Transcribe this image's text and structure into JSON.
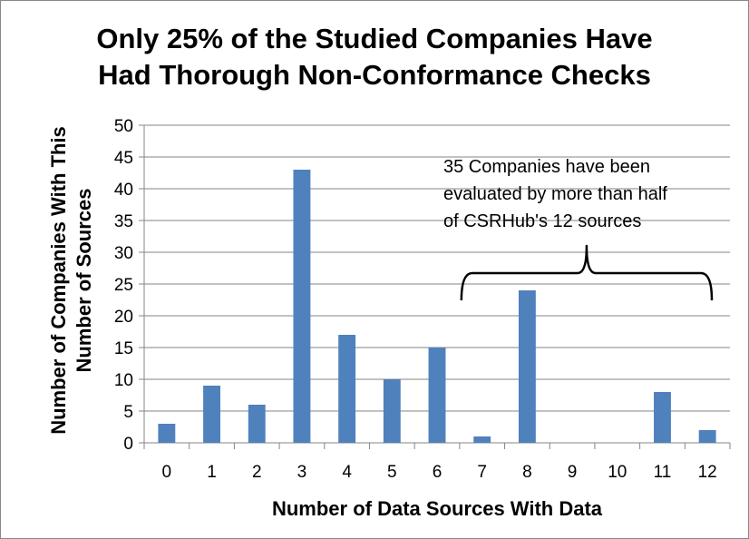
{
  "chart_data": {
    "type": "bar",
    "title_lines": [
      "Only 25% of the Studied Companies Have",
      "Had Thorough Non-Conformance Checks"
    ],
    "xlabel": "Number of Data Sources With Data",
    "ylabel_lines": [
      "Number of Companies With This",
      "Number of Sources"
    ],
    "categories": [
      "0",
      "1",
      "2",
      "3",
      "4",
      "5",
      "6",
      "7",
      "8",
      "9",
      "10",
      "11",
      "12"
    ],
    "values": [
      3,
      9,
      6,
      43,
      17,
      10,
      15,
      1,
      24,
      0,
      0,
      8,
      2
    ],
    "ylim": [
      0,
      50
    ],
    "yticks": [
      0,
      5,
      10,
      15,
      20,
      25,
      30,
      35,
      40,
      45,
      50
    ],
    "grid": true,
    "bar_color": "#4f81bd",
    "annotation": {
      "lines": [
        "35 Companies have been",
        "evaluated by more than half",
        "of CSRHub's 12 sources"
      ],
      "brace_from": "7",
      "brace_to": "12"
    }
  }
}
